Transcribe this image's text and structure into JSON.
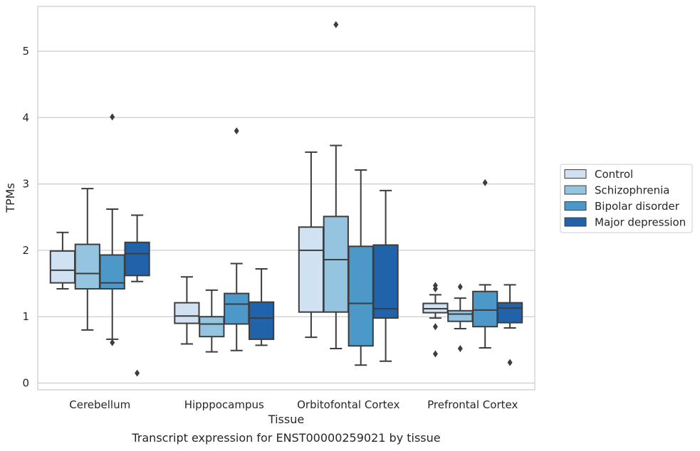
{
  "chart_data": {
    "type": "box",
    "xlabel": "Tissue",
    "ylabel": "TPMs",
    "caption": "Transcript expression for ENST00000259021 by tissue",
    "ylim": [
      -0.1,
      5.8
    ],
    "yticks": [
      0,
      1,
      2,
      3,
      4,
      5
    ],
    "grid": "horizontal",
    "legend_position": "right",
    "categories": [
      "Cerebellum",
      "Hipppocampus",
      "Orbitofontal Cortex",
      "Prefrontal Cortex"
    ],
    "series": [
      {
        "name": "Control",
        "color": "#d0e1f2",
        "boxes": [
          {
            "whislo": 1.42,
            "q1": 1.51,
            "med": 1.7,
            "q3": 1.99,
            "whishi": 2.27,
            "fliers": []
          },
          {
            "whislo": 0.59,
            "q1": 0.9,
            "med": 1.01,
            "q3": 1.21,
            "whishi": 1.6,
            "fliers": []
          },
          {
            "whislo": 0.69,
            "q1": 1.07,
            "med": 2.0,
            "q3": 2.35,
            "whishi": 3.48,
            "fliers": []
          },
          {
            "whislo": 0.98,
            "q1": 1.06,
            "med": 1.12,
            "q3": 1.2,
            "whishi": 1.33,
            "fliers": [
              1.47,
              1.42,
              0.85,
              0.44
            ]
          }
        ]
      },
      {
        "name": "Schizophrenia",
        "color": "#94c4df",
        "boxes": [
          {
            "whislo": 0.8,
            "q1": 1.42,
            "med": 1.65,
            "q3": 2.09,
            "whishi": 2.93,
            "fliers": []
          },
          {
            "whislo": 0.47,
            "q1": 0.7,
            "med": 0.89,
            "q3": 1.0,
            "whishi": 1.4,
            "fliers": []
          },
          {
            "whislo": 0.52,
            "q1": 1.07,
            "med": 1.86,
            "q3": 2.51,
            "whishi": 3.58,
            "fliers": [
              5.4
            ]
          },
          {
            "whislo": 0.82,
            "q1": 0.93,
            "med": 1.04,
            "q3": 1.09,
            "whishi": 1.28,
            "fliers": [
              1.45,
              0.52
            ]
          }
        ]
      },
      {
        "name": "Bipolar disorder",
        "color": "#4b98c9",
        "boxes": [
          {
            "whislo": 0.66,
            "q1": 1.42,
            "med": 1.51,
            "q3": 1.93,
            "whishi": 2.62,
            "fliers": [
              4.01,
              0.61
            ]
          },
          {
            "whislo": 0.49,
            "q1": 0.89,
            "med": 1.19,
            "q3": 1.35,
            "whishi": 1.8,
            "fliers": [
              3.8
            ]
          },
          {
            "whislo": 0.27,
            "q1": 0.56,
            "med": 1.2,
            "q3": 2.06,
            "whishi": 3.21,
            "fliers": []
          },
          {
            "whislo": 0.53,
            "q1": 0.85,
            "med": 1.1,
            "q3": 1.38,
            "whishi": 1.48,
            "fliers": [
              3.02
            ]
          }
        ]
      },
      {
        "name": "Major depression",
        "color": "#2163aa",
        "boxes": [
          {
            "whislo": 1.53,
            "q1": 1.62,
            "med": 1.95,
            "q3": 2.12,
            "whishi": 2.53,
            "fliers": [
              0.15
            ]
          },
          {
            "whislo": 0.57,
            "q1": 0.66,
            "med": 0.98,
            "q3": 1.22,
            "whishi": 1.72,
            "fliers": []
          },
          {
            "whislo": 0.33,
            "q1": 0.98,
            "med": 1.12,
            "q3": 2.08,
            "whishi": 2.9,
            "fliers": []
          },
          {
            "whislo": 0.83,
            "q1": 0.91,
            "med": 1.13,
            "q3": 1.21,
            "whishi": 1.48,
            "fliers": [
              0.31
            ]
          }
        ]
      }
    ]
  }
}
